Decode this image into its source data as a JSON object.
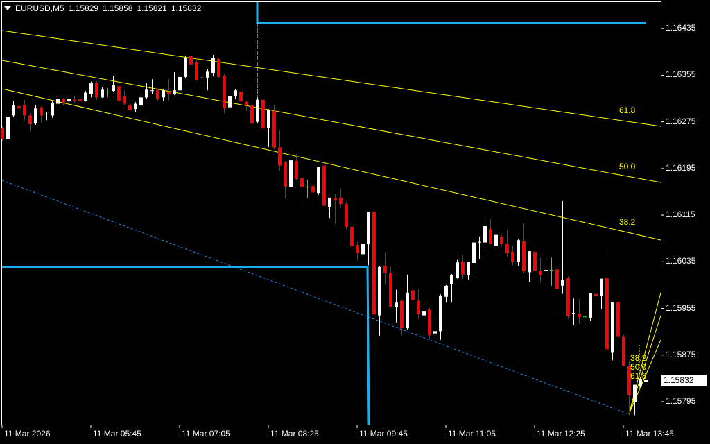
{
  "header": {
    "symbol": "EURUSD,M5",
    "open": "1.15829",
    "high": "1.15858",
    "low": "1.15821",
    "close": "1.15832"
  },
  "colors": {
    "background": "#000000",
    "bull": "#ffffff",
    "bear": "#ff0000",
    "doji_green": "#00ff00",
    "channel": "#ffff00",
    "levels": "#1ab0f0",
    "trend_dotted": "#1e90ff"
  },
  "price_axis": [
    "1.16435",
    "1.16355",
    "1.16275",
    "1.16195",
    "1.16115",
    "1.16035",
    "1.15955",
    "1.15875",
    "1.15795"
  ],
  "current_price": "1.15832",
  "time_axis": [
    "11 Mar 2026",
    "11 Mar 05:45",
    "11 Mar 07:05",
    "11 Mar 08:25",
    "11 Mar 09:45",
    "11 Mar 11:05",
    "11 Mar 12:25",
    "11 Mar 13:45"
  ],
  "channel_labels": [
    "61.8",
    "50.0",
    "38.2"
  ],
  "fan_labels": [
    "38.2",
    "50.0",
    "61.8"
  ],
  "chart_data": {
    "type": "candlestick",
    "timeframe": "M5",
    "ylim": [
      1.15745,
      1.16484
    ],
    "bull_color": "#ffffff",
    "bear_color": "#ff0000",
    "ohlc": [
      [
        1.16264,
        1.16267,
        1.16242,
        1.16246
      ],
      [
        1.16246,
        1.16286,
        1.16242,
        1.16283
      ],
      [
        1.16286,
        1.16311,
        1.16283,
        1.16303
      ],
      [
        1.16302,
        1.16304,
        1.16296,
        1.16298
      ],
      [
        1.16303,
        1.16313,
        1.16278,
        1.16286
      ],
      [
        1.16286,
        1.1629,
        1.16259,
        1.16271
      ],
      [
        1.16272,
        1.16304,
        1.1627,
        1.16298
      ],
      [
        1.163,
        1.16302,
        1.16273,
        1.16286
      ],
      [
        1.16288,
        1.16291,
        1.16278,
        1.16289
      ],
      [
        1.16286,
        1.1631,
        1.16282,
        1.16308
      ],
      [
        1.16306,
        1.16317,
        1.16294,
        1.16315
      ],
      [
        1.16314,
        1.16316,
        1.16304,
        1.16308
      ],
      [
        1.1631,
        1.16316,
        1.16308,
        1.16314
      ],
      [
        1.16313,
        1.1632,
        1.16308,
        1.16311
      ],
      [
        1.16314,
        1.16323,
        1.16308,
        1.16311
      ],
      [
        1.16311,
        1.16328,
        1.1631,
        1.16325
      ],
      [
        1.16323,
        1.16344,
        1.16317,
        1.16341
      ],
      [
        1.16342,
        1.16345,
        1.16313,
        1.16317
      ],
      [
        1.16317,
        1.16334,
        1.16316,
        1.1633
      ],
      [
        1.16327,
        1.16333,
        1.16317,
        1.16327
      ],
      [
        1.16328,
        1.16354,
        1.16326,
        1.16338
      ],
      [
        1.16336,
        1.16339,
        1.1631,
        1.16311
      ],
      [
        1.16319,
        1.16329,
        1.16303,
        1.16306
      ],
      [
        1.16304,
        1.16309,
        1.16294,
        1.16295
      ],
      [
        1.16297,
        1.16309,
        1.16292,
        1.16306
      ],
      [
        1.16303,
        1.16321,
        1.16302,
        1.16317
      ],
      [
        1.16317,
        1.16341,
        1.16314,
        1.1633
      ],
      [
        1.16328,
        1.16348,
        1.16323,
        1.16329
      ],
      [
        1.1633,
        1.16333,
        1.16311,
        1.16314
      ],
      [
        1.16317,
        1.16332,
        1.16311,
        1.16329
      ],
      [
        1.16327,
        1.16348,
        1.16311,
        1.16323
      ],
      [
        1.16323,
        1.1636,
        1.16321,
        1.16329
      ],
      [
        1.16329,
        1.16355,
        1.16323,
        1.16352
      ],
      [
        1.16352,
        1.16389,
        1.1635,
        1.16385
      ],
      [
        1.16388,
        1.16402,
        1.16367,
        1.16373
      ],
      [
        1.16377,
        1.16384,
        1.16345,
        1.16347
      ],
      [
        1.1635,
        1.16357,
        1.16336,
        1.16351
      ],
      [
        1.16351,
        1.16365,
        1.16329,
        1.16361
      ],
      [
        1.16359,
        1.1639,
        1.16353,
        1.16384
      ],
      [
        1.16383,
        1.16385,
        1.1635,
        1.16352
      ],
      [
        1.16354,
        1.16358,
        1.1629,
        1.16298
      ],
      [
        1.163,
        1.16339,
        1.16297,
        1.16319
      ],
      [
        1.16319,
        1.16332,
        1.16314,
        1.16329
      ],
      [
        1.16327,
        1.16345,
        1.1629,
        1.1631
      ],
      [
        1.16309,
        1.16311,
        1.16294,
        1.16303
      ],
      [
        1.16303,
        1.16348,
        1.1627,
        1.16272
      ],
      [
        1.16275,
        1.16317,
        1.16272,
        1.16313
      ],
      [
        1.16313,
        1.1632,
        1.1626,
        1.16264
      ],
      [
        1.16264,
        1.16297,
        1.16232,
        1.16295
      ],
      [
        1.16294,
        1.16304,
        1.16228,
        1.16231
      ],
      [
        1.16231,
        1.16261,
        1.16191,
        1.162
      ],
      [
        1.16206,
        1.16208,
        1.16144,
        1.16164
      ],
      [
        1.16163,
        1.16209,
        1.16154,
        1.16209
      ],
      [
        1.16208,
        1.1622,
        1.16175,
        1.16177
      ],
      [
        1.16179,
        1.16182,
        1.16129,
        1.16164
      ],
      [
        1.16164,
        1.16176,
        1.16144,
        1.16164
      ],
      [
        1.16165,
        1.16175,
        1.16125,
        1.16154
      ],
      [
        1.16153,
        1.16198,
        1.1615,
        1.16198
      ],
      [
        1.162,
        1.16202,
        1.16129,
        1.16131
      ],
      [
        1.16129,
        1.16145,
        1.1611,
        1.16145
      ],
      [
        1.16144,
        1.16151,
        1.161,
        1.1614
      ],
      [
        1.16145,
        1.16161,
        1.16128,
        1.16134
      ],
      [
        1.16134,
        1.16138,
        1.16091,
        1.16095
      ],
      [
        1.16095,
        1.16097,
        1.1606,
        1.16062
      ],
      [
        1.16064,
        1.1607,
        1.16038,
        1.1605
      ],
      [
        1.16048,
        1.16066,
        1.16035,
        1.16066
      ],
      [
        1.16065,
        1.16121,
        1.16029,
        1.16121
      ],
      [
        1.16121,
        1.16134,
        1.15902,
        1.15945
      ],
      [
        1.15943,
        1.16028,
        1.15908,
        1.16026
      ],
      [
        1.16028,
        1.16051,
        1.15996,
        1.16016
      ],
      [
        1.16015,
        1.16026,
        1.15958,
        1.15958
      ],
      [
        1.15958,
        1.15987,
        1.15931,
        1.15965
      ],
      [
        1.15968,
        1.15971,
        1.15909,
        1.15921
      ],
      [
        1.15921,
        1.16013,
        1.15919,
        1.15982
      ],
      [
        1.15986,
        1.15994,
        1.15931,
        1.1597
      ],
      [
        1.15968,
        1.15988,
        1.15937,
        1.15945
      ],
      [
        1.15943,
        1.15963,
        1.1594,
        1.1595
      ],
      [
        1.15953,
        1.15956,
        1.15903,
        1.15909
      ],
      [
        1.15912,
        1.15934,
        1.15897,
        1.15916
      ],
      [
        1.15916,
        1.15979,
        1.15901,
        1.15977
      ],
      [
        1.15975,
        1.15995,
        1.15965,
        1.15994
      ],
      [
        1.15997,
        1.16014,
        1.15965,
        1.16012
      ],
      [
        1.16008,
        1.16038,
        1.16006,
        1.16034
      ],
      [
        1.16035,
        1.16047,
        1.16006,
        1.16013
      ],
      [
        1.16012,
        1.16035,
        1.16004,
        1.16035
      ],
      [
        1.16033,
        1.16068,
        1.16016,
        1.16068
      ],
      [
        1.16069,
        1.16078,
        1.1604,
        1.16069
      ],
      [
        1.16068,
        1.16112,
        1.16053,
        1.16096
      ],
      [
        1.16091,
        1.16108,
        1.16065,
        1.16065
      ],
      [
        1.16062,
        1.16081,
        1.16046,
        1.16081
      ],
      [
        1.16078,
        1.16081,
        1.16062,
        1.16065
      ],
      [
        1.16066,
        1.16089,
        1.16044,
        1.1605
      ],
      [
        1.16052,
        1.16063,
        1.16029,
        1.16035
      ],
      [
        1.16035,
        1.16075,
        1.16028,
        1.16072
      ],
      [
        1.1607,
        1.16101,
        1.16015,
        1.16019
      ],
      [
        1.16017,
        1.16053,
        1.16,
        1.16053
      ],
      [
        1.16052,
        1.1606,
        1.16015,
        1.16019
      ],
      [
        1.16019,
        1.16042,
        1.16,
        1.16012
      ],
      [
        1.16019,
        1.16039,
        1.16012,
        1.16021
      ],
      [
        1.16021,
        1.16042,
        1.15994,
        1.16021
      ],
      [
        1.16022,
        1.16025,
        1.15945,
        1.15989
      ],
      [
        1.15994,
        1.16139,
        1.1598,
        1.16004
      ],
      [
        1.16007,
        1.1601,
        1.15937,
        1.15941
      ],
      [
        1.15947,
        1.15972,
        1.15926,
        1.15947
      ],
      [
        1.15946,
        1.15971,
        1.15929,
        1.1594
      ],
      [
        1.15941,
        1.15964,
        1.15927,
        1.15941
      ],
      [
        1.15939,
        1.15981,
        1.15934,
        1.15981
      ],
      [
        1.1598,
        1.15995,
        1.1595,
        1.15976
      ],
      [
        1.15976,
        1.16006,
        1.15954,
        1.16006
      ],
      [
        1.16008,
        1.16052,
        1.15868,
        1.15885
      ],
      [
        1.15879,
        1.15966,
        1.15866,
        1.15965
      ],
      [
        1.15966,
        1.15969,
        1.15892,
        1.15906
      ],
      [
        1.15906,
        1.1591,
        1.15855,
        1.15857
      ],
      [
        1.15857,
        1.15865,
        1.15772,
        1.15806
      ],
      [
        1.15794,
        1.15824,
        1.15772,
        1.15824
      ],
      [
        1.15821,
        1.15837,
        1.15818,
        1.15833
      ],
      [
        1.15829,
        1.15858,
        1.15821,
        1.15832
      ]
    ],
    "green_doji_indices": [
      19,
      55,
      99,
      105
    ]
  }
}
